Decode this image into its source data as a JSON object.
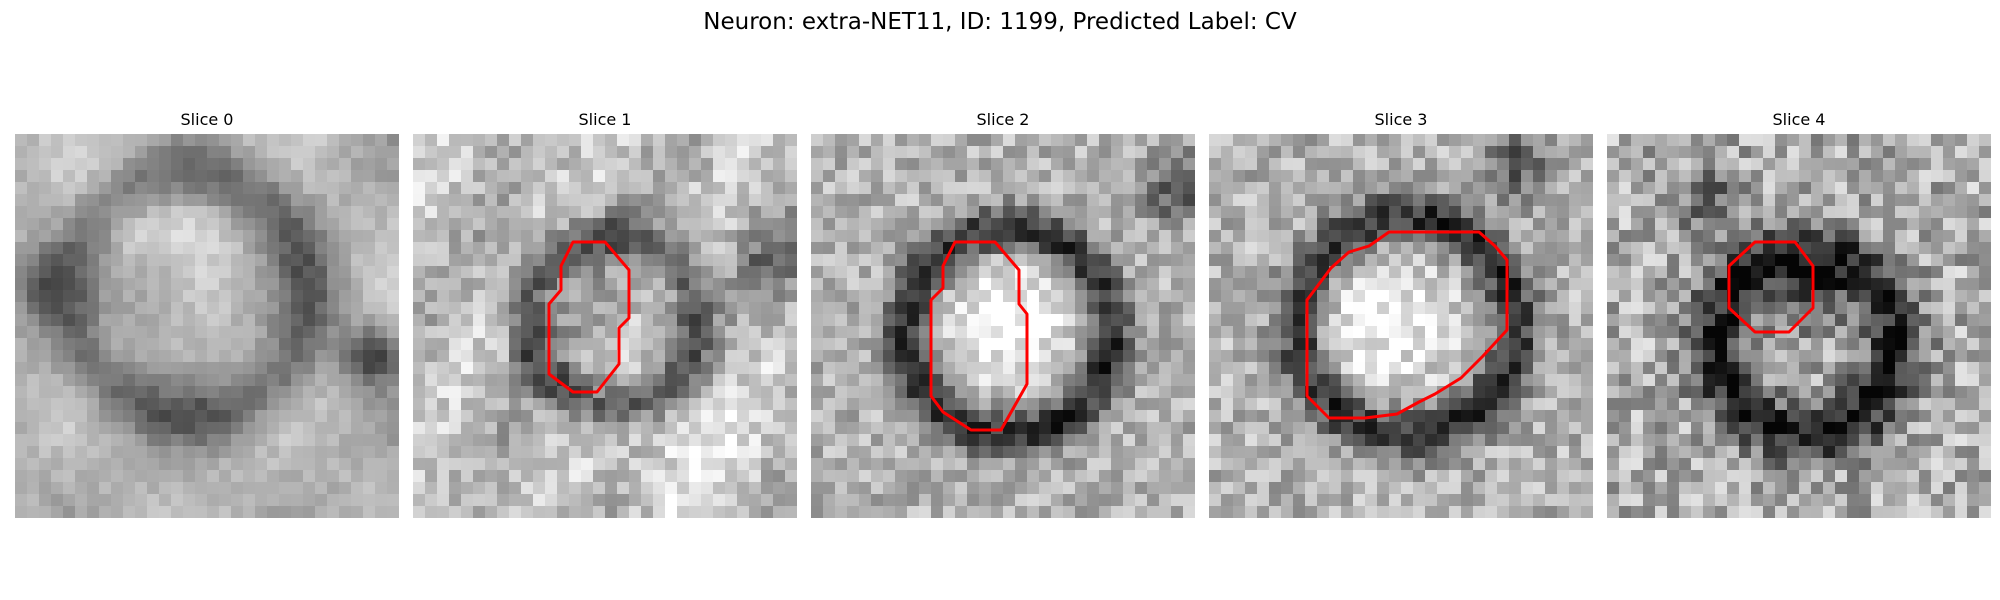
{
  "figure": {
    "title": "Neuron: extra-NET11, ID: 1199, Predicted Label: CV"
  },
  "panels": [
    {
      "title": "Slice 0",
      "has_contour": false
    },
    {
      "title": "Slice 1",
      "has_contour": true
    },
    {
      "title": "Slice 2",
      "has_contour": true
    },
    {
      "title": "Slice 3",
      "has_contour": true
    },
    {
      "title": "Slice 4",
      "has_contour": true
    }
  ],
  "colors": {
    "contour": "#ff0000",
    "colormap": "gray"
  }
}
